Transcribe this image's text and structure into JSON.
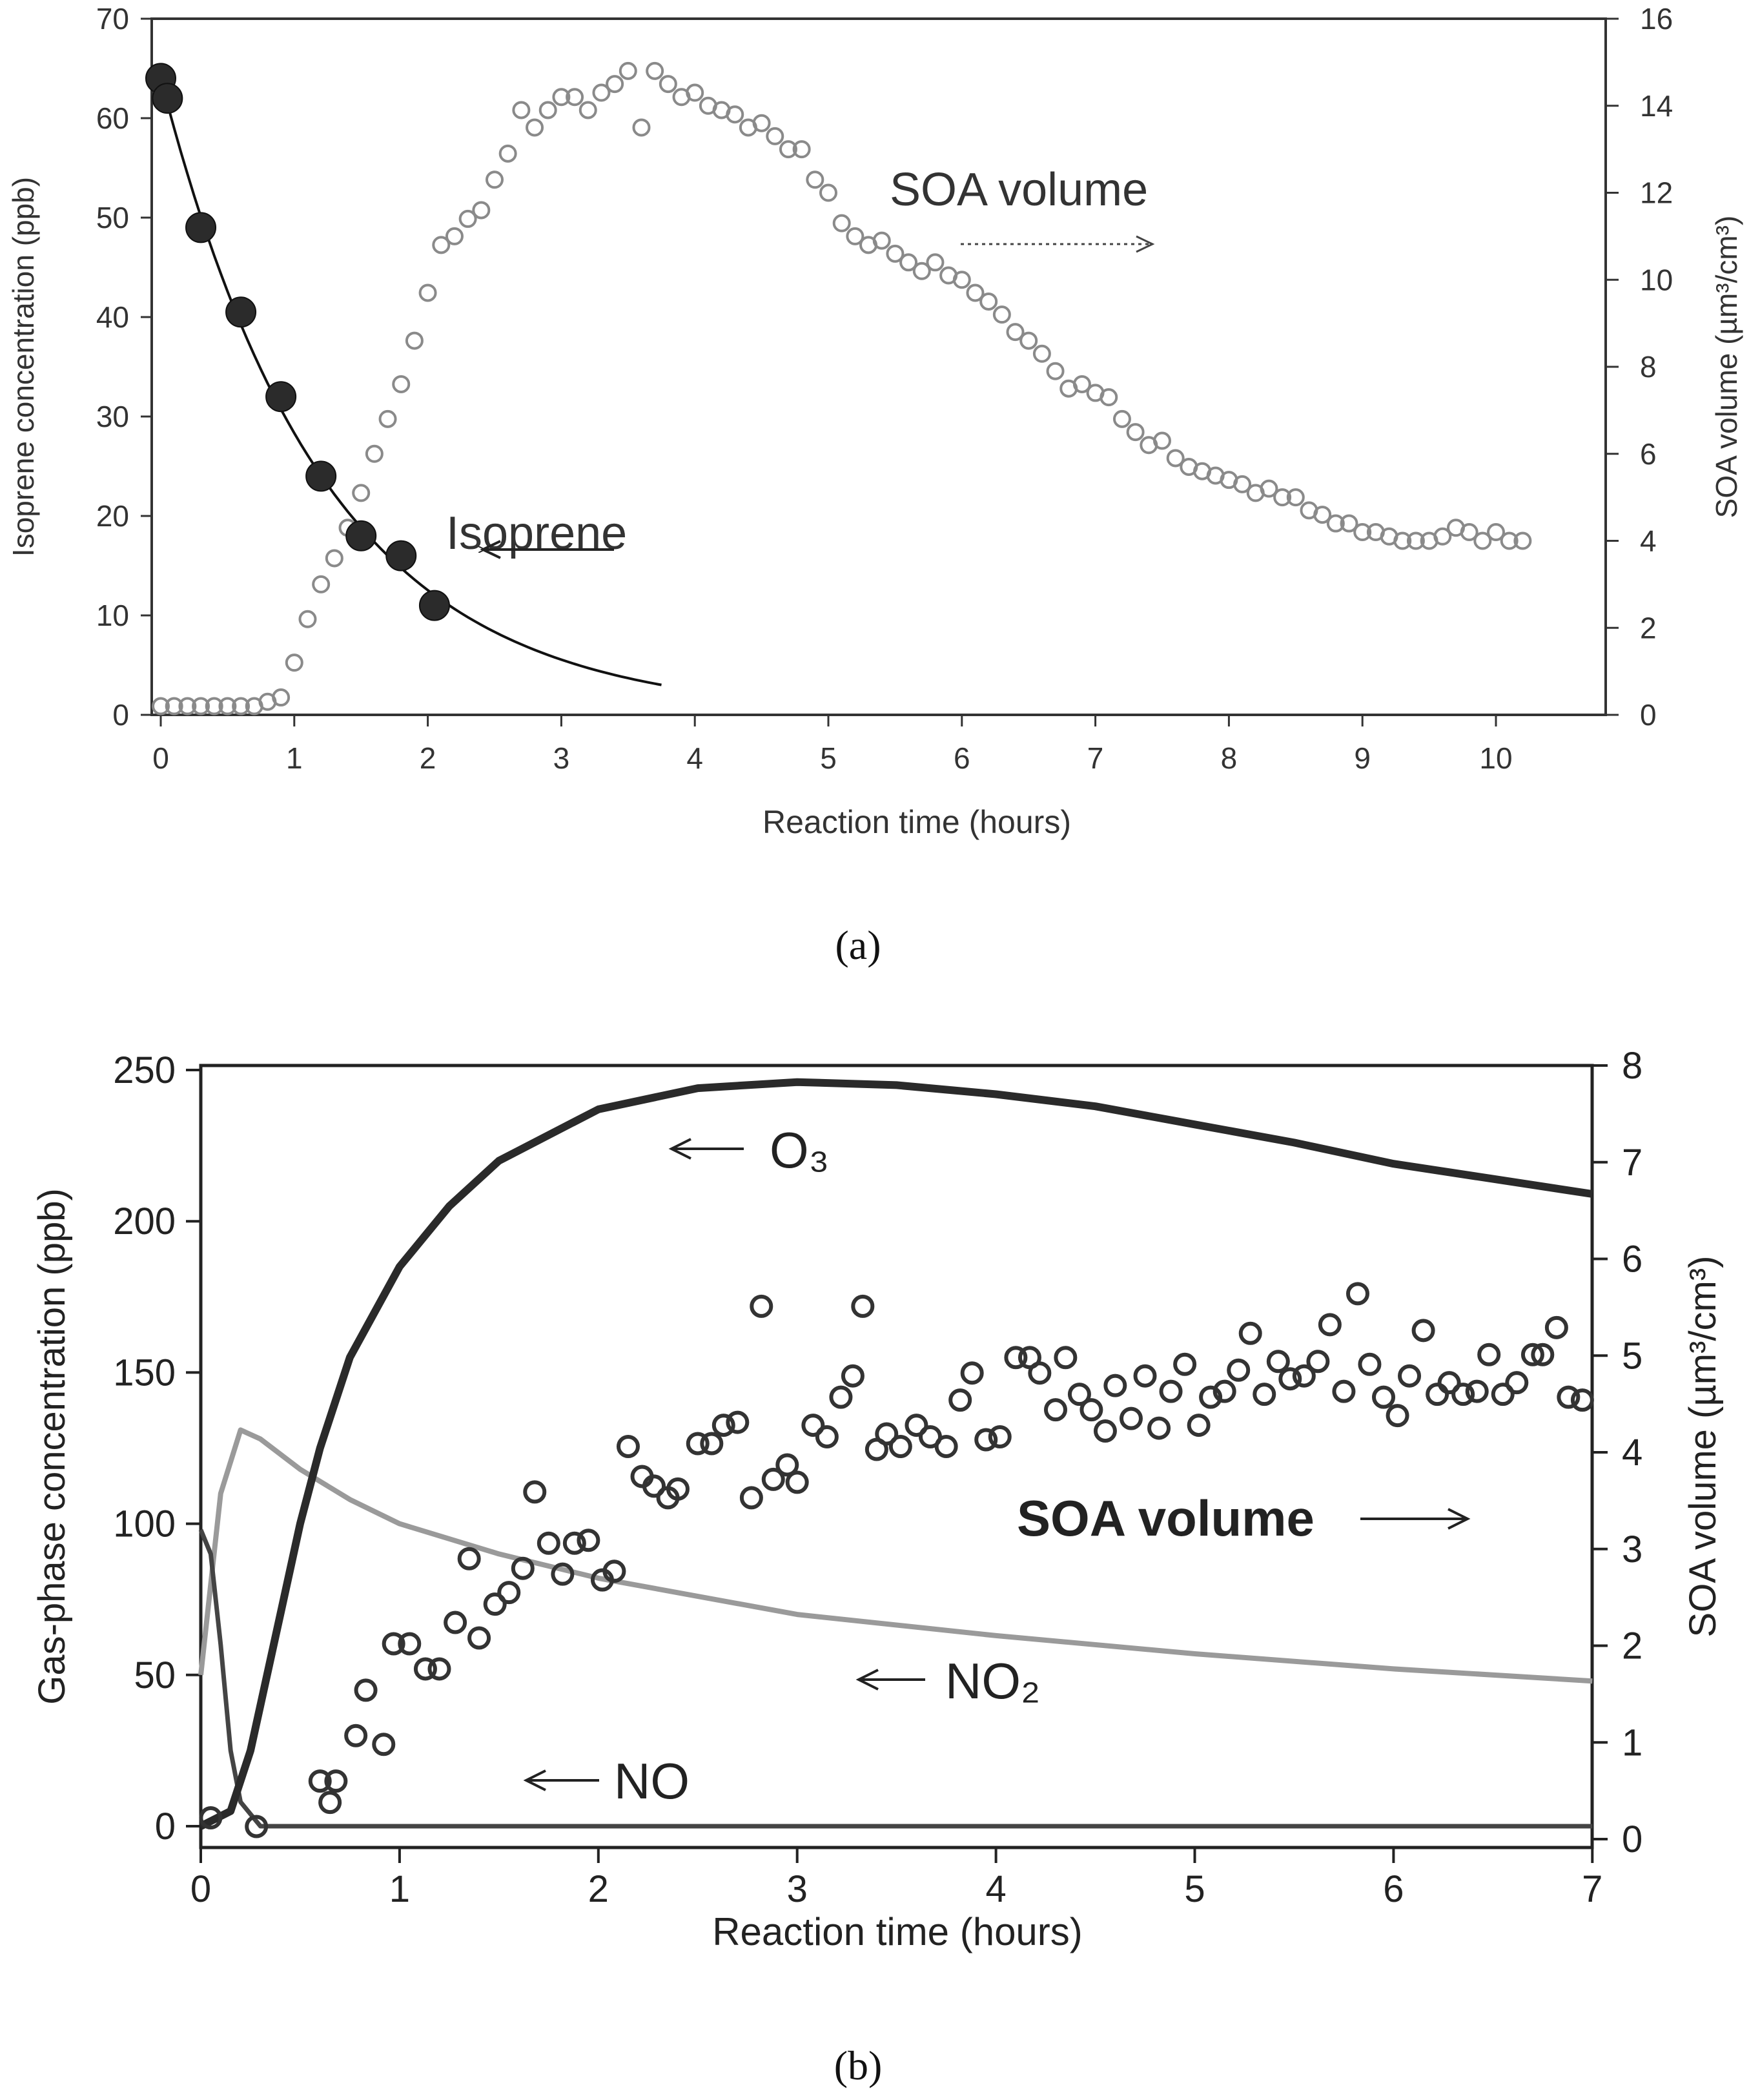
{
  "chart_data": [
    {
      "panel_label": "(a)",
      "type": "scatter",
      "xlabel": "Reaction time (hours)",
      "ylabel": "Isoprene concentration (ppb)",
      "y2label": "SOA volume (µm³/cm³)",
      "xlim": [
        0,
        10.8
      ],
      "ylim": [
        0,
        70
      ],
      "y2lim": [
        0,
        16
      ],
      "xticks": [
        "0",
        "1",
        "2",
        "3",
        "4",
        "5",
        "6",
        "7",
        "8",
        "9",
        "10"
      ],
      "yticks": [
        "0",
        "10",
        "20",
        "30",
        "40",
        "50",
        "60",
        "70"
      ],
      "y2ticks": [
        "0",
        "2",
        "4",
        "6",
        "8",
        "10",
        "12",
        "14",
        "16"
      ],
      "annotations": {
        "soa": "SOA volume",
        "isoprene": "Isoprene"
      },
      "series": [
        {
          "name": "Isoprene",
          "axis": "left",
          "marker": "filled-circle",
          "x": [
            0,
            0.05,
            0.3,
            0.6,
            0.9,
            1.2,
            1.5,
            1.8,
            2.05
          ],
          "y": [
            64,
            62,
            49,
            40.5,
            32,
            24,
            18,
            16,
            11
          ]
        },
        {
          "name": "Isoprene fit",
          "axis": "left",
          "marker": "line",
          "fit": {
            "a": 64,
            "k": 0.815,
            "x_end": 3.75
          }
        },
        {
          "name": "SOA volume",
          "axis": "right",
          "marker": "open-circle",
          "x_start": 0,
          "x_step": 0.1,
          "y": [
            0.2,
            0.2,
            0.2,
            0.2,
            0.2,
            0.2,
            0.2,
            0.2,
            0.3,
            0.4,
            1.2,
            2.2,
            3.0,
            3.6,
            4.3,
            5.1,
            6.0,
            6.8,
            7.6,
            8.6,
            9.7,
            10.8,
            11.0,
            11.4,
            11.6,
            12.3,
            12.9,
            13.9,
            13.5,
            13.9,
            14.2,
            14.2,
            13.9,
            14.3,
            14.5,
            14.8,
            13.5,
            14.8,
            14.5,
            14.2,
            14.3,
            14.0,
            13.9,
            13.8,
            13.5,
            13.6,
            13.3,
            13.0,
            13.0,
            12.3,
            12.0,
            11.3,
            11.0,
            10.8,
            10.9,
            10.6,
            10.4,
            10.2,
            10.4,
            10.1,
            10.0,
            9.7,
            9.5,
            9.2,
            8.8,
            8.6,
            8.3,
            7.9,
            7.5,
            7.6,
            7.4,
            7.3,
            6.8,
            6.5,
            6.2,
            6.3,
            5.9,
            5.7,
            5.6,
            5.5,
            5.4,
            5.3,
            5.1,
            5.2,
            5.0,
            5.0,
            4.7,
            4.6,
            4.4,
            4.4,
            4.2,
            4.2,
            4.1,
            4.0,
            4.0,
            4.0,
            4.1,
            4.3,
            4.2,
            4.0,
            4.2,
            4.0,
            4.0
          ]
        }
      ]
    },
    {
      "panel_label": "(b)",
      "type": "line",
      "xlabel": "Reaction time (hours)",
      "ylabel": "Gas-phase concentration (ppb)",
      "y2label": "SOA volume (µm³/cm³)",
      "xlim": [
        0,
        7
      ],
      "ylim": [
        0,
        250
      ],
      "y2lim": [
        0,
        8
      ],
      "xticks": [
        "0",
        "1",
        "2",
        "3",
        "4",
        "5",
        "6",
        "7"
      ],
      "yticks": [
        "0",
        "50",
        "100",
        "150",
        "200",
        "250"
      ],
      "y2ticks": [
        "0",
        "1",
        "2",
        "3",
        "4",
        "5",
        "6",
        "7",
        "8"
      ],
      "annotations": {
        "o3": "O₃",
        "no2": "NO₂",
        "no": "NO",
        "soa": "SOA volume"
      },
      "series": [
        {
          "name": "O3",
          "axis": "left",
          "color": "#2a2a2a",
          "x": [
            0,
            0.15,
            0.25,
            0.4,
            0.5,
            0.6,
            0.75,
            1.0,
            1.25,
            1.5,
            2.0,
            2.5,
            3.0,
            3.5,
            4.0,
            4.5,
            5.0,
            5.5,
            6.0,
            6.5,
            7.0
          ],
          "y": [
            0,
            5,
            25,
            70,
            100,
            125,
            155,
            185,
            205,
            220,
            237,
            244,
            246,
            245,
            242,
            238,
            232,
            226,
            219,
            214,
            209
          ]
        },
        {
          "name": "NO2",
          "axis": "left",
          "color": "#9a9a9a",
          "x": [
            0,
            0.1,
            0.2,
            0.3,
            0.5,
            0.75,
            1.0,
            1.5,
            2.0,
            3.0,
            4.0,
            5.0,
            6.0,
            7.0
          ],
          "y": [
            50,
            110,
            131,
            128,
            118,
            108,
            100,
            90,
            82,
            70,
            63,
            57,
            52,
            48
          ]
        },
        {
          "name": "NO",
          "axis": "left",
          "color": "#444444",
          "x": [
            0,
            0.05,
            0.1,
            0.15,
            0.2,
            0.3,
            7.0
          ],
          "y": [
            98,
            90,
            60,
            25,
            8,
            0,
            0
          ]
        },
        {
          "name": "SOA volume",
          "axis": "right",
          "marker": "open-circle",
          "x": [
            0.05,
            0.28,
            0.6,
            0.65,
            0.68,
            0.78,
            0.83,
            0.92,
            0.97,
            1.05,
            1.13,
            1.2,
            1.28,
            1.35,
            1.4,
            1.48,
            1.55,
            1.62,
            1.68,
            1.75,
            1.82,
            1.88,
            1.95,
            2.02,
            2.08,
            2.15,
            2.22,
            2.28,
            2.35,
            2.4,
            2.5,
            2.57,
            2.63,
            2.7,
            2.77,
            2.82,
            2.88,
            2.95,
            3.0,
            3.08,
            3.15,
            3.22,
            3.28,
            3.33,
            3.4,
            3.45,
            3.52,
            3.6,
            3.67,
            3.75,
            3.82,
            3.88,
            3.95,
            4.02,
            4.1,
            4.17,
            4.22,
            4.3,
            4.35,
            4.42,
            4.48,
            4.55,
            4.6,
            4.68,
            4.75,
            4.82,
            4.88,
            4.95,
            5.02,
            5.08,
            5.15,
            5.22,
            5.28,
            5.35,
            5.42,
            5.48,
            5.55,
            5.62,
            5.68,
            5.75,
            5.82,
            5.88,
            5.95,
            6.02,
            6.08,
            6.15,
            6.22,
            6.28,
            6.35,
            6.42,
            6.48,
            6.55,
            6.62,
            6.7,
            6.75,
            6.82,
            6.88,
            6.95
          ],
          "y": [
            0.22,
            0.13,
            0.6,
            0.38,
            0.6,
            1.07,
            1.54,
            0.98,
            2.02,
            2.02,
            1.76,
            1.76,
            2.24,
            2.9,
            2.08,
            2.43,
            2.55,
            2.8,
            3.59,
            3.06,
            2.74,
            3.06,
            3.09,
            2.68,
            2.77,
            4.06,
            3.75,
            3.65,
            3.53,
            3.62,
            4.09,
            4.09,
            4.28,
            4.31,
            3.53,
            5.51,
            3.72,
            3.87,
            3.69,
            4.28,
            4.16,
            4.57,
            4.79,
            5.51,
            4.03,
            4.19,
            4.06,
            4.28,
            4.16,
            4.06,
            4.54,
            4.82,
            4.13,
            4.16,
            4.98,
            4.98,
            4.82,
            4.44,
            4.98,
            4.6,
            4.44,
            4.22,
            4.69,
            4.35,
            4.79,
            4.25,
            4.63,
            4.91,
            4.28,
            4.57,
            4.63,
            4.85,
            5.23,
            4.6,
            4.94,
            4.76,
            4.79,
            4.94,
            5.32,
            4.63,
            5.64,
            4.91,
            4.57,
            4.38,
            4.79,
            5.26,
            4.6,
            4.72,
            4.6,
            4.63,
            5.01,
            4.6,
            4.72,
            5.01,
            5.01,
            5.29,
            4.57,
            4.54
          ]
        }
      ]
    }
  ]
}
